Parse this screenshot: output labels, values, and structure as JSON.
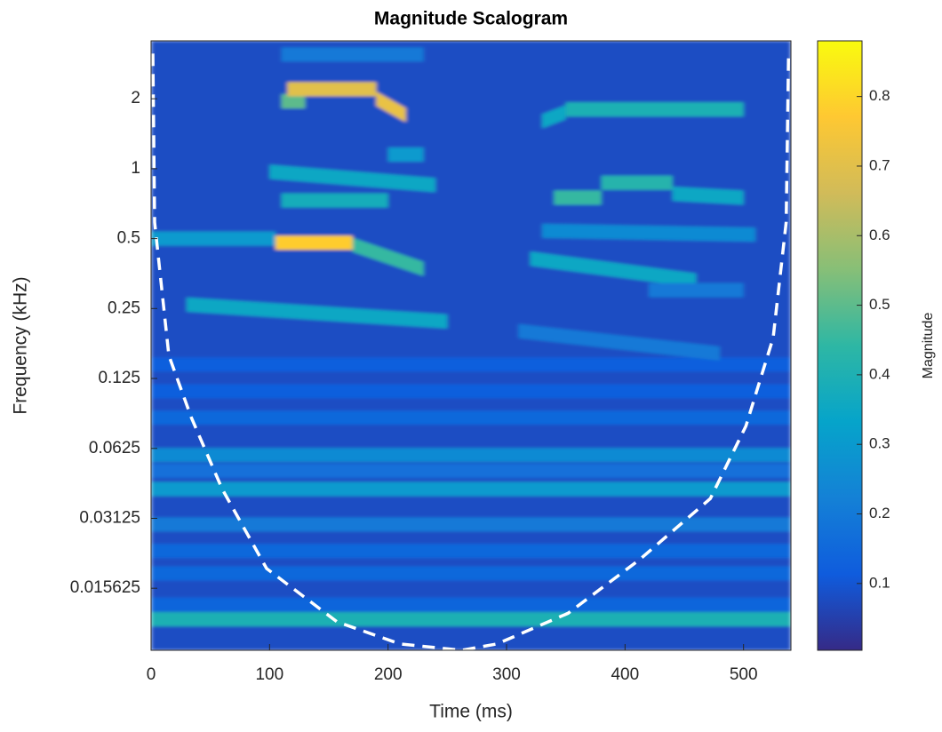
{
  "chart_data": {
    "type": "heatmap",
    "title": "Magnitude Scalogram",
    "x_label": "Time (ms)",
    "y_label": "Frequency (kHz)",
    "colorbar_label": "Magnitude",
    "xlim": [
      0,
      540
    ],
    "xticks": [
      0,
      100,
      200,
      300,
      400,
      500
    ],
    "ylim": [
      0.00845,
      3.55
    ],
    "y_scale": "log2",
    "yticks": [
      2,
      1,
      0.5,
      0.25,
      0.125,
      0.0625,
      0.03125,
      0.015625
    ],
    "clim": [
      0.004,
      0.88
    ],
    "cticks": [
      0.1,
      0.2,
      0.3,
      0.4,
      0.5,
      0.6,
      0.7,
      0.8
    ],
    "colormap": [
      "#352a87",
      "#0f5cdd",
      "#1481d6",
      "#06a4ca",
      "#2eb7a4",
      "#87bf77",
      "#d1bb59",
      "#fec832",
      "#f9fb0e"
    ],
    "background_magnitude": 0.08,
    "features": [
      {
        "t": [
          0,
          540
        ],
        "f": [
          0.0115,
          0.0115
        ],
        "magnitude": 0.4
      },
      {
        "t": [
          0,
          540
        ],
        "f": [
          0.0418,
          0.0418
        ],
        "magnitude": 0.3
      },
      {
        "t": [
          0,
          540
        ],
        "f": [
          0.0585,
          0.0585
        ],
        "magnitude": 0.25
      },
      {
        "t": [
          0,
          540
        ],
        "f": [
          0.0294,
          0.0294
        ],
        "magnitude": 0.2
      },
      {
        "t": [
          0,
          540
        ],
        "f": [
          0.05,
          0.05
        ],
        "magnitude": 0.17
      },
      {
        "t": [
          0,
          540
        ],
        "f": [
          0.0226,
          0.0226
        ],
        "magnitude": 0.15
      },
      {
        "t": [
          0,
          540
        ],
        "f": [
          0.0181,
          0.0181
        ],
        "magnitude": 0.15
      },
      {
        "t": [
          0,
          540
        ],
        "f": [
          0.0133,
          0.0133
        ],
        "magnitude": 0.14
      },
      {
        "t": [
          0,
          540
        ],
        "f": [
          0.0848,
          0.0848
        ],
        "magnitude": 0.15
      },
      {
        "t": [
          0,
          540
        ],
        "f": [
          0.11,
          0.11
        ],
        "magnitude": 0.12
      },
      {
        "t": [
          0,
          540
        ],
        "f": [
          0.1436,
          0.1436
        ],
        "magnitude": 0.12
      },
      {
        "t": [
          110,
          230
        ],
        "f": [
          3.1,
          3.1
        ],
        "magnitude": 0.2
      },
      {
        "t": [
          30,
          250
        ],
        "f": [
          0.26,
          0.22
        ],
        "magnitude": 0.35
      },
      {
        "t": [
          0,
          105
        ],
        "f": [
          0.5,
          0.5
        ],
        "magnitude": 0.3
      },
      {
        "t": [
          170,
          230
        ],
        "f": [
          0.47,
          0.37
        ],
        "magnitude": 0.45
      },
      {
        "t": [
          105,
          170
        ],
        "f": [
          0.48,
          0.48
        ],
        "magnitude": 0.78
      },
      {
        "t": [
          110,
          200
        ],
        "f": [
          0.73,
          0.73
        ],
        "magnitude": 0.38
      },
      {
        "t": [
          100,
          240
        ],
        "f": [
          0.97,
          0.85
        ],
        "magnitude": 0.35
      },
      {
        "t": [
          200,
          230
        ],
        "f": [
          1.15,
          1.15
        ],
        "magnitude": 0.3
      },
      {
        "t": [
          110,
          130
        ],
        "f": [
          1.95,
          1.95
        ],
        "magnitude": 0.5
      },
      {
        "t": [
          115,
          190
        ],
        "f": [
          2.2,
          2.2
        ],
        "magnitude": 0.7
      },
      {
        "t": [
          190,
          215
        ],
        "f": [
          2.0,
          1.7
        ],
        "magnitude": 0.72
      },
      {
        "t": [
          330,
          350
        ],
        "f": [
          1.6,
          1.75
        ],
        "magnitude": 0.35
      },
      {
        "t": [
          350,
          500
        ],
        "f": [
          1.8,
          1.8
        ],
        "magnitude": 0.4
      },
      {
        "t": [
          380,
          440
        ],
        "f": [
          0.87,
          0.87
        ],
        "magnitude": 0.42
      },
      {
        "t": [
          340,
          380
        ],
        "f": [
          0.75,
          0.75
        ],
        "magnitude": 0.45
      },
      {
        "t": [
          440,
          500
        ],
        "f": [
          0.78,
          0.75
        ],
        "magnitude": 0.35
      },
      {
        "t": [
          330,
          510
        ],
        "f": [
          0.54,
          0.52
        ],
        "magnitude": 0.25
      },
      {
        "t": [
          320,
          460
        ],
        "f": [
          0.41,
          0.33
        ],
        "magnitude": 0.35
      },
      {
        "t": [
          420,
          500
        ],
        "f": [
          0.3,
          0.3
        ],
        "magnitude": 0.2
      },
      {
        "t": [
          310,
          480
        ],
        "f": [
          0.2,
          0.16
        ],
        "magnitude": 0.2
      }
    ],
    "coi": {
      "color": "#ffffff",
      "style": "dashed",
      "x": [
        1.5,
        3,
        15,
        34,
        60,
        97.5,
        157,
        210,
        262,
        292,
        352,
        412,
        472,
        502,
        525,
        536,
        538
      ],
      "y": [
        3.13,
        0.588,
        0.157,
        0.0848,
        0.0418,
        0.019,
        0.0112,
        0.009,
        0.00845,
        0.009,
        0.0122,
        0.0207,
        0.038,
        0.078,
        0.187,
        0.588,
        3.13
      ]
    }
  }
}
